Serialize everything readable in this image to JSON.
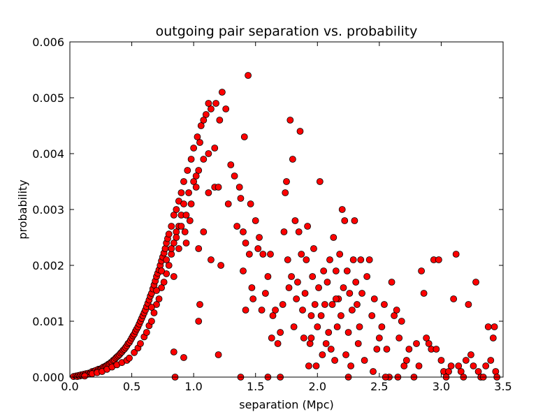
{
  "chart_data": {
    "type": "scatter",
    "title": "outgoing pair separation vs. probability",
    "xlabel": "separation (Mpc)",
    "ylabel": "probability",
    "xlim": [
      0.0,
      3.5
    ],
    "ylim": [
      0.0,
      0.006
    ],
    "x_ticks": [
      0.0,
      0.5,
      1.0,
      1.5,
      2.0,
      2.5,
      3.0,
      3.5
    ],
    "x_tick_labels": [
      "0.0",
      "0.5",
      "1.0",
      "1.5",
      "2.0",
      "2.5",
      "3.0",
      "3.5"
    ],
    "y_ticks": [
      0.0,
      0.001,
      0.002,
      0.003,
      0.004,
      0.005,
      0.006
    ],
    "y_tick_labels": [
      "0.000",
      "0.001",
      "0.002",
      "0.003",
      "0.004",
      "0.005",
      "0.006"
    ],
    "grid": false,
    "legend": "none",
    "marker_color": "#ff0000",
    "marker_edge_color": "#000000",
    "points": [
      [
        0.03,
        1e-05
      ],
      [
        0.05,
        2e-05
      ],
      [
        0.06,
        1e-05
      ],
      [
        0.07,
        3e-05
      ],
      [
        0.08,
        2e-05
      ],
      [
        0.09,
        4e-05
      ],
      [
        0.1,
        3e-05
      ],
      [
        0.11,
        5e-05
      ],
      [
        0.12,
        4e-05
      ],
      [
        0.13,
        6e-05
      ],
      [
        0.14,
        5e-05
      ],
      [
        0.15,
        7e-05
      ],
      [
        0.16,
        6e-05
      ],
      [
        0.17,
        8e-05
      ],
      [
        0.18,
        0.0001
      ],
      [
        0.19,
        9e-05
      ],
      [
        0.2,
        0.00011
      ],
      [
        0.21,
        0.00012
      ],
      [
        0.22,
        0.0001
      ],
      [
        0.23,
        0.00014
      ],
      [
        0.24,
        0.00013
      ],
      [
        0.25,
        0.00015
      ],
      [
        0.26,
        0.00016
      ],
      [
        0.27,
        0.00018
      ],
      [
        0.28,
        0.00017
      ],
      [
        0.29,
        0.0002
      ],
      [
        0.3,
        0.00021
      ],
      [
        0.31,
        0.00023
      ],
      [
        0.32,
        0.00024
      ],
      [
        0.33,
        0.00026
      ],
      [
        0.34,
        0.00027
      ],
      [
        0.35,
        0.0003
      ],
      [
        0.36,
        0.00031
      ],
      [
        0.37,
        0.00034
      ],
      [
        0.38,
        0.00036
      ],
      [
        0.39,
        0.00038
      ],
      [
        0.4,
        0.0004
      ],
      [
        0.41,
        0.00043
      ],
      [
        0.42,
        0.00045
      ],
      [
        0.43,
        0.00048
      ],
      [
        0.44,
        0.0005
      ],
      [
        0.45,
        0.00053
      ],
      [
        0.46,
        0.00056
      ],
      [
        0.47,
        0.0006
      ],
      [
        0.48,
        0.00062
      ],
      [
        0.49,
        0.00066
      ],
      [
        0.5,
        0.0007
      ],
      [
        0.51,
        0.00074
      ],
      [
        0.52,
        0.00077
      ],
      [
        0.53,
        0.00082
      ],
      [
        0.54,
        0.00086
      ],
      [
        0.55,
        0.0009
      ],
      [
        0.56,
        0.00095
      ],
      [
        0.57,
        0.001
      ],
      [
        0.58,
        0.00105
      ],
      [
        0.59,
        0.0011
      ],
      [
        0.6,
        0.00115
      ],
      [
        0.61,
        0.0012
      ],
      [
        0.62,
        0.00126
      ],
      [
        0.63,
        0.00132
      ],
      [
        0.64,
        0.00138
      ],
      [
        0.65,
        0.00145
      ],
      [
        0.66,
        0.0015
      ],
      [
        0.67,
        0.00158
      ],
      [
        0.68,
        0.00165
      ],
      [
        0.69,
        0.00172
      ],
      [
        0.7,
        0.0018
      ],
      [
        0.71,
        0.00186
      ],
      [
        0.72,
        0.00192
      ],
      [
        0.73,
        0.002
      ],
      [
        0.74,
        0.00208
      ],
      [
        0.75,
        0.00215
      ],
      [
        0.76,
        0.00222
      ],
      [
        0.77,
        0.0023
      ],
      [
        0.78,
        0.0024
      ],
      [
        0.79,
        0.00248
      ],
      [
        0.8,
        0.00256
      ],
      [
        0.82,
        0.0027
      ],
      [
        0.84,
        0.0029
      ],
      [
        0.86,
        0.003
      ],
      [
        0.88,
        0.00315
      ],
      [
        0.9,
        0.0033
      ],
      [
        0.92,
        0.0035
      ],
      [
        0.95,
        0.0037
      ],
      [
        0.98,
        0.0039
      ],
      [
        1.0,
        0.0041
      ],
      [
        1.03,
        0.0043
      ],
      [
        1.06,
        0.0045
      ],
      [
        1.1,
        0.0047
      ],
      [
        1.14,
        0.0048
      ],
      [
        0.12,
        2e-05
      ],
      [
        0.18,
        6e-05
      ],
      [
        0.22,
        8e-05
      ],
      [
        0.26,
        0.0001
      ],
      [
        0.3,
        0.00014
      ],
      [
        0.34,
        0.00018
      ],
      [
        0.38,
        0.00022
      ],
      [
        0.42,
        0.00026
      ],
      [
        0.46,
        0.0003
      ],
      [
        0.48,
        0.00034
      ],
      [
        0.52,
        0.00044
      ],
      [
        0.55,
        0.00052
      ],
      [
        0.57,
        0.0006
      ],
      [
        0.6,
        0.00072
      ],
      [
        0.62,
        0.0008
      ],
      [
        0.64,
        0.00092
      ],
      [
        0.66,
        0.001
      ],
      [
        0.68,
        0.00115
      ],
      [
        0.7,
        0.0013
      ],
      [
        0.72,
        0.0014
      ],
      [
        0.74,
        0.0016
      ],
      [
        0.76,
        0.0017
      ],
      [
        0.78,
        0.00185
      ],
      [
        0.8,
        0.002
      ],
      [
        0.82,
        0.0022
      ],
      [
        0.84,
        0.0024
      ],
      [
        0.86,
        0.0026
      ],
      [
        0.88,
        0.0027
      ],
      [
        0.9,
        0.0029
      ],
      [
        0.92,
        0.0031
      ],
      [
        0.96,
        0.0033
      ],
      [
        1.0,
        0.0035
      ],
      [
        1.04,
        0.0037
      ],
      [
        1.08,
        0.0039
      ],
      [
        1.12,
        0.004
      ],
      [
        1.17,
        0.0041
      ],
      [
        0.66,
        0.00125
      ],
      [
        0.7,
        0.00155
      ],
      [
        0.74,
        0.0019
      ],
      [
        0.78,
        0.0021
      ],
      [
        0.82,
        0.0023
      ],
      [
        0.86,
        0.0025
      ],
      [
        0.9,
        0.0027
      ],
      [
        0.94,
        0.0029
      ],
      [
        0.98,
        0.0031
      ],
      [
        1.02,
        0.0034
      ],
      [
        0.84,
        0.0018
      ],
      [
        0.88,
        0.0023
      ],
      [
        0.93,
        0.0026
      ],
      [
        0.97,
        0.0028
      ],
      [
        1.02,
        0.0036
      ],
      [
        1.05,
        0.0042
      ],
      [
        1.08,
        0.0046
      ],
      [
        1.12,
        0.0049
      ],
      [
        1.18,
        0.0049
      ],
      [
        1.21,
        0.0046
      ],
      [
        1.23,
        0.0051
      ],
      [
        1.26,
        0.0048
      ],
      [
        1.17,
        0.0034
      ],
      [
        1.12,
        0.0033
      ],
      [
        1.2,
        0.0034
      ],
      [
        1.08,
        0.0026
      ],
      [
        1.14,
        0.0021
      ],
      [
        1.04,
        0.0023
      ],
      [
        0.94,
        0.0024
      ],
      [
        0.84,
        0.00045
      ],
      [
        0.92,
        0.00035
      ],
      [
        1.04,
        0.001
      ],
      [
        1.05,
        0.0013
      ],
      [
        0.85,
        0.0
      ],
      [
        1.2,
        0.0004
      ],
      [
        1.22,
        0.002
      ],
      [
        1.28,
        0.0031
      ],
      [
        1.3,
        0.0038
      ],
      [
        1.33,
        0.0036
      ],
      [
        1.35,
        0.0027
      ],
      [
        1.38,
        0.0032
      ],
      [
        1.4,
        0.0026
      ],
      [
        1.42,
        0.0024
      ],
      [
        1.44,
        0.0054
      ],
      [
        1.45,
        0.0022
      ],
      [
        1.47,
        0.0016
      ],
      [
        1.48,
        0.0014
      ],
      [
        1.37,
        0.0034
      ],
      [
        1.41,
        0.0043
      ],
      [
        1.46,
        0.0031
      ],
      [
        1.5,
        0.0028
      ],
      [
        1.52,
        0.0023
      ],
      [
        1.53,
        0.0025
      ],
      [
        1.56,
        0.0022
      ],
      [
        1.4,
        0.0019
      ],
      [
        1.42,
        0.0012
      ],
      [
        1.38,
        0.0
      ],
      [
        1.55,
        0.0012
      ],
      [
        1.58,
        0.0015
      ],
      [
        1.6,
        0.0018
      ],
      [
        1.62,
        0.0022
      ],
      [
        1.63,
        0.0007
      ],
      [
        1.64,
        0.0011
      ],
      [
        1.66,
        0.0012
      ],
      [
        1.68,
        0.0006
      ],
      [
        1.7,
        0.0008
      ],
      [
        1.72,
        0.0013
      ],
      [
        1.73,
        0.0026
      ],
      [
        1.74,
        0.0033
      ],
      [
        1.75,
        0.0035
      ],
      [
        1.76,
        0.0021
      ],
      [
        1.77,
        0.0016
      ],
      [
        1.78,
        0.0046
      ],
      [
        1.79,
        0.0018
      ],
      [
        1.8,
        0.0039
      ],
      [
        1.81,
        0.0009
      ],
      [
        1.82,
        0.0028
      ],
      [
        1.83,
        0.0014
      ],
      [
        1.84,
        0.0017
      ],
      [
        1.85,
        0.0026
      ],
      [
        1.86,
        0.0044
      ],
      [
        1.87,
        0.0022
      ],
      [
        1.88,
        0.0012
      ],
      [
        1.89,
        0.0007
      ],
      [
        1.9,
        0.0015
      ],
      [
        1.91,
        0.0021
      ],
      [
        1.92,
        0.0027
      ],
      [
        1.93,
        0.0002
      ],
      [
        1.94,
        0.0006
      ],
      [
        1.95,
        0.0011
      ],
      [
        1.96,
        0.0018
      ],
      [
        1.97,
        0.0023
      ],
      [
        1.98,
        0.0013
      ],
      [
        1.99,
        0.0002
      ],
      [
        2.0,
        0.0009
      ],
      [
        2.01,
        0.0016
      ],
      [
        2.02,
        0.0035
      ],
      [
        2.03,
        0.0011
      ],
      [
        2.04,
        0.0004
      ],
      [
        2.05,
        0.0019
      ],
      [
        2.06,
        0.0013
      ],
      [
        2.07,
        0.0006
      ],
      [
        2.08,
        0.0017
      ],
      [
        2.09,
        0.0008
      ],
      [
        2.1,
        0.0021
      ],
      [
        2.11,
        0.0005
      ],
      [
        2.12,
        0.0013
      ],
      [
        2.13,
        0.0025
      ],
      [
        2.14,
        0.0003
      ],
      [
        2.15,
        0.0019
      ],
      [
        2.16,
        0.0009
      ],
      [
        2.17,
        0.0014
      ],
      [
        2.18,
        0.0022
      ],
      [
        2.19,
        0.0011
      ],
      [
        2.2,
        0.003
      ],
      [
        2.21,
        0.0016
      ],
      [
        2.22,
        0.0028
      ],
      [
        2.23,
        0.0004
      ],
      [
        2.24,
        0.0019
      ],
      [
        2.25,
        0.0008
      ],
      [
        2.26,
        0.0015
      ],
      [
        2.27,
        0.0002
      ],
      [
        2.28,
        0.0012
      ],
      [
        2.29,
        0.0021
      ],
      [
        2.3,
        0.0028
      ],
      [
        2.31,
        0.0017
      ],
      [
        2.32,
        0.0013
      ],
      [
        2.33,
        0.0006
      ],
      [
        2.34,
        0.0009
      ],
      [
        2.35,
        0.0021
      ],
      [
        2.36,
        0.0015
      ],
      [
        2.38,
        0.0003
      ],
      [
        2.4,
        0.0018
      ],
      [
        2.42,
        0.0021
      ],
      [
        2.44,
        0.0011
      ],
      [
        2.46,
        0.0014
      ],
      [
        2.48,
        0.0005
      ],
      [
        2.5,
        0.0007
      ],
      [
        2.52,
        0.0009
      ],
      [
        2.54,
        0.0013
      ],
      [
        2.56,
        0.0005
      ],
      [
        2.58,
        0.0
      ],
      [
        2.6,
        0.0017
      ],
      [
        2.62,
        0.0011
      ],
      [
        2.64,
        0.0012
      ],
      [
        2.66,
        0.0007
      ],
      [
        2.68,
        0.001
      ],
      [
        2.7,
        0.0002
      ],
      [
        2.72,
        0.0003
      ],
      [
        2.74,
        0.0005
      ],
      [
        2.78,
        0.0
      ],
      [
        2.8,
        0.0006
      ],
      [
        2.82,
        0.0002
      ],
      [
        2.84,
        0.0019
      ],
      [
        2.86,
        0.0015
      ],
      [
        2.88,
        0.0007
      ],
      [
        2.9,
        0.0006
      ],
      [
        2.92,
        0.0005
      ],
      [
        2.94,
        0.0021
      ],
      [
        2.96,
        0.0005
      ],
      [
        2.98,
        0.0021
      ],
      [
        3.0,
        0.0003
      ],
      [
        3.02,
        0.0001
      ],
      [
        3.04,
        0.0
      ],
      [
        3.06,
        0.0001
      ],
      [
        3.08,
        0.0002
      ],
      [
        3.1,
        0.0014
      ],
      [
        3.12,
        0.0022
      ],
      [
        3.14,
        0.0002
      ],
      [
        3.16,
        0.0001
      ],
      [
        3.18,
        0.0
      ],
      [
        3.2,
        0.0003
      ],
      [
        3.22,
        0.0013
      ],
      [
        3.24,
        0.0004
      ],
      [
        3.26,
        0.0002
      ],
      [
        3.28,
        0.0017
      ],
      [
        3.3,
        0.0001
      ],
      [
        3.32,
        0.0
      ],
      [
        3.34,
        0.0
      ],
      [
        3.36,
        0.0002
      ],
      [
        3.38,
        0.0009
      ],
      [
        3.4,
        0.0003
      ],
      [
        3.42,
        0.0007
      ],
      [
        3.43,
        0.0009
      ],
      [
        3.44,
        0.0001
      ],
      [
        3.45,
        0.0
      ],
      [
        1.95,
        0.0007
      ],
      [
        2.15,
        0.0014
      ],
      [
        2.25,
        0.0
      ],
      [
        2.45,
        0.0001
      ],
      [
        2.55,
        0.0
      ],
      [
        2.65,
        0.0
      ],
      [
        1.6,
        0.0
      ],
      [
        1.7,
        0.0
      ]
    ]
  }
}
